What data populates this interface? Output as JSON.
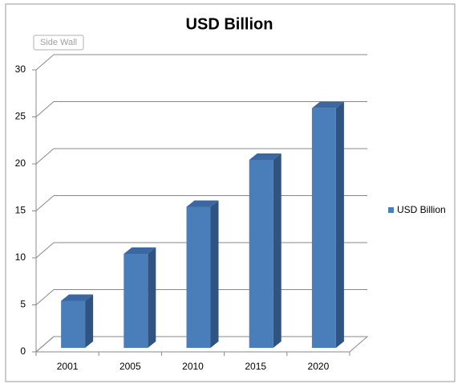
{
  "chart_data": {
    "type": "bar3d",
    "title": "USD Billion",
    "tooltip": "Side Wall",
    "categories": [
      "2001",
      "2005",
      "2010",
      "2015",
      "2020"
    ],
    "series": [
      {
        "name": "USD Billion",
        "color": "#4a7ebb",
        "values": [
          5,
          10,
          15,
          20,
          25.5
        ]
      }
    ],
    "ylim": [
      0,
      30
    ],
    "yticks": [
      0,
      5,
      10,
      15,
      20,
      25,
      30
    ],
    "grid": true,
    "legend": "right"
  }
}
